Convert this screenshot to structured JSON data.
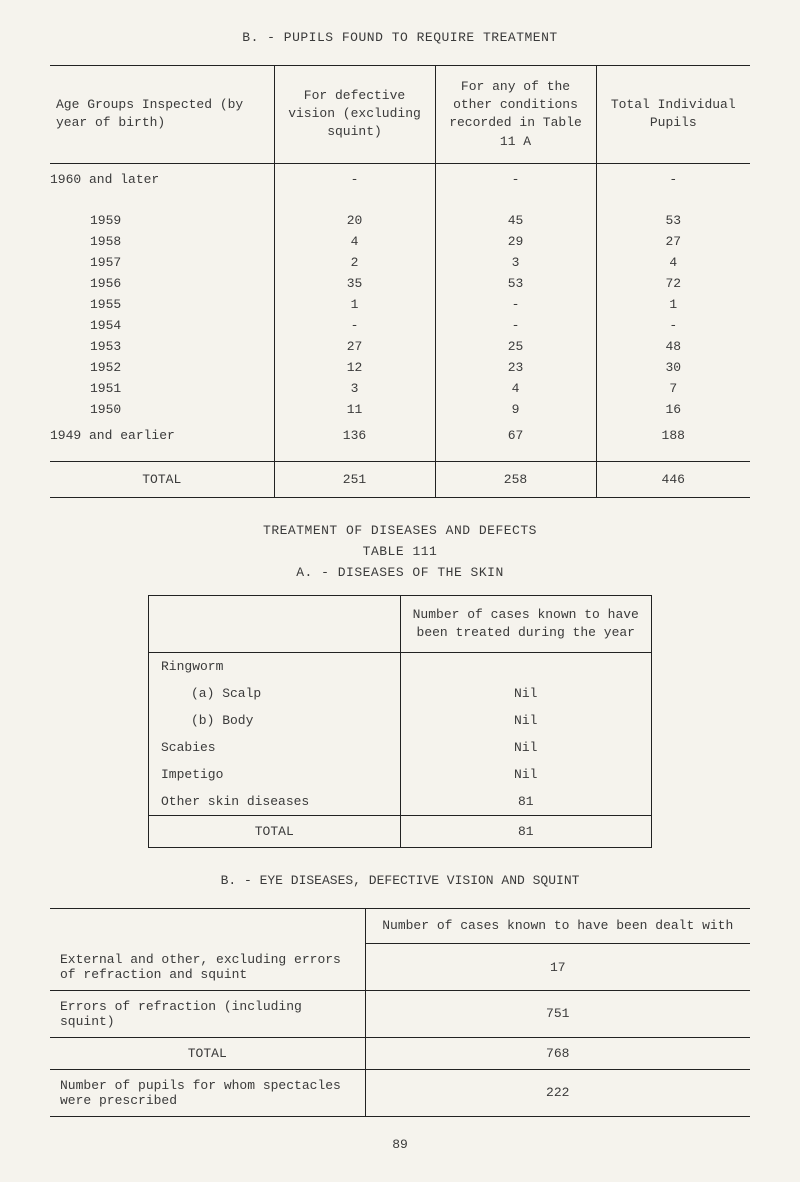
{
  "title_b": "B. - PUPILS FOUND TO REQUIRE TREATMENT",
  "table1": {
    "headers": {
      "age": "Age Groups Inspected (by year of birth)",
      "v1": "For defective vision (excluding squint)",
      "v2": "For any of the other conditions recorded in Table 11 A",
      "v3": "Total Individual Pupils"
    },
    "rows": [
      {
        "age": "1960 and later",
        "v1": "-",
        "v2": "-",
        "v3": "-"
      },
      {
        "age": "1959",
        "v1": "20",
        "v2": "45",
        "v3": "53"
      },
      {
        "age": "1958",
        "v1": "4",
        "v2": "29",
        "v3": "27"
      },
      {
        "age": "1957",
        "v1": "2",
        "v2": "3",
        "v3": "4"
      },
      {
        "age": "1956",
        "v1": "35",
        "v2": "53",
        "v3": "72"
      },
      {
        "age": "1955",
        "v1": "1",
        "v2": "-",
        "v3": "1"
      },
      {
        "age": "1954",
        "v1": "-",
        "v2": "-",
        "v3": "-"
      },
      {
        "age": "1953",
        "v1": "27",
        "v2": "25",
        "v3": "48"
      },
      {
        "age": "1952",
        "v1": "12",
        "v2": "23",
        "v3": "30"
      },
      {
        "age": "1951",
        "v1": "3",
        "v2": "4",
        "v3": "7"
      },
      {
        "age": "1950",
        "v1": "11",
        "v2": "9",
        "v3": "16"
      },
      {
        "age": "1949 and earlier",
        "v1": "136",
        "v2": "67",
        "v3": "188"
      }
    ],
    "total": {
      "label": "TOTAL",
      "v1": "251",
      "v2": "258",
      "v3": "446"
    }
  },
  "mid_headings": {
    "h1": "TREATMENT OF DISEASES AND DEFECTS",
    "h2": "TABLE 111",
    "h3": "A. - DISEASES OF THE SKIN"
  },
  "table2": {
    "header": "Number of cases known to have been treated during the year",
    "rows": [
      {
        "label": "Ringworm",
        "val": ""
      },
      {
        "label": "(a) Scalp",
        "val": "Nil",
        "indent": true
      },
      {
        "label": "(b) Body",
        "val": "Nil",
        "indent": true
      },
      {
        "label": "Scabies",
        "val": "Nil"
      },
      {
        "label": "Impetigo",
        "val": "Nil"
      },
      {
        "label": "Other skin diseases",
        "val": "81"
      }
    ],
    "total": {
      "label": "TOTAL",
      "val": "81"
    }
  },
  "section_b2": "B. - EYE DISEASES, DEFECTIVE VISION AND SQUINT",
  "table3": {
    "header": "Number of cases known to have been dealt with",
    "rows": [
      {
        "label": "External and other, excluding errors of refraction and squint",
        "val": "17"
      },
      {
        "label": "Errors of refraction (including squint)",
        "val": "751"
      },
      {
        "label": "TOTAL",
        "val": "768",
        "center": true
      },
      {
        "label": "Number of pupils for whom spectacles were prescribed",
        "val": "222"
      }
    ]
  },
  "page_num": "89"
}
